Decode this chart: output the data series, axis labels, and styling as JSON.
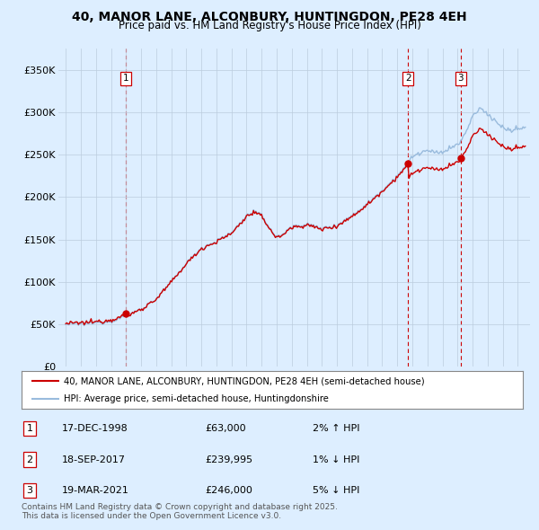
{
  "title": "40, MANOR LANE, ALCONBURY, HUNTINGDON, PE28 4EH",
  "subtitle": "Price paid vs. HM Land Registry's House Price Index (HPI)",
  "ylim": [
    0,
    375000
  ],
  "yticks": [
    0,
    50000,
    100000,
    150000,
    200000,
    250000,
    300000,
    350000
  ],
  "ytick_labels": [
    "£0",
    "£50K",
    "£100K",
    "£150K",
    "£200K",
    "£250K",
    "£300K",
    "£350K"
  ],
  "bg_color": "#ddeeff",
  "plot_bg_color": "#ddeeff",
  "line_color_red": "#cc0000",
  "line_color_blue": "#99bbdd",
  "vline_color": "#cc0000",
  "marker_color": "#cc0000",
  "sale_dates": [
    1999.0,
    2017.72,
    2021.21
  ],
  "sale_prices": [
    63000,
    239995,
    246000
  ],
  "sale_labels": [
    "1",
    "2",
    "3"
  ],
  "legend_red": "40, MANOR LANE, ALCONBURY, HUNTINGDON, PE28 4EH (semi-detached house)",
  "legend_blue": "HPI: Average price, semi-detached house, Huntingdonshire",
  "table_rows": [
    [
      "1",
      "17-DEC-1998",
      "£63,000",
      "2% ↑ HPI"
    ],
    [
      "2",
      "18-SEP-2017",
      "£239,995",
      "1% ↓ HPI"
    ],
    [
      "3",
      "19-MAR-2021",
      "£246,000",
      "5% ↓ HPI"
    ]
  ],
  "footer": "Contains HM Land Registry data © Crown copyright and database right 2025.\nThis data is licensed under the Open Government Licence v3.0.",
  "xmin": 1994.5,
  "xmax": 2025.8,
  "xticks": [
    1995,
    1996,
    1997,
    1998,
    1999,
    2000,
    2001,
    2002,
    2003,
    2004,
    2005,
    2006,
    2007,
    2008,
    2009,
    2010,
    2011,
    2012,
    2013,
    2014,
    2015,
    2016,
    2017,
    2018,
    2019,
    2020,
    2021,
    2022,
    2023,
    2024,
    2025
  ]
}
